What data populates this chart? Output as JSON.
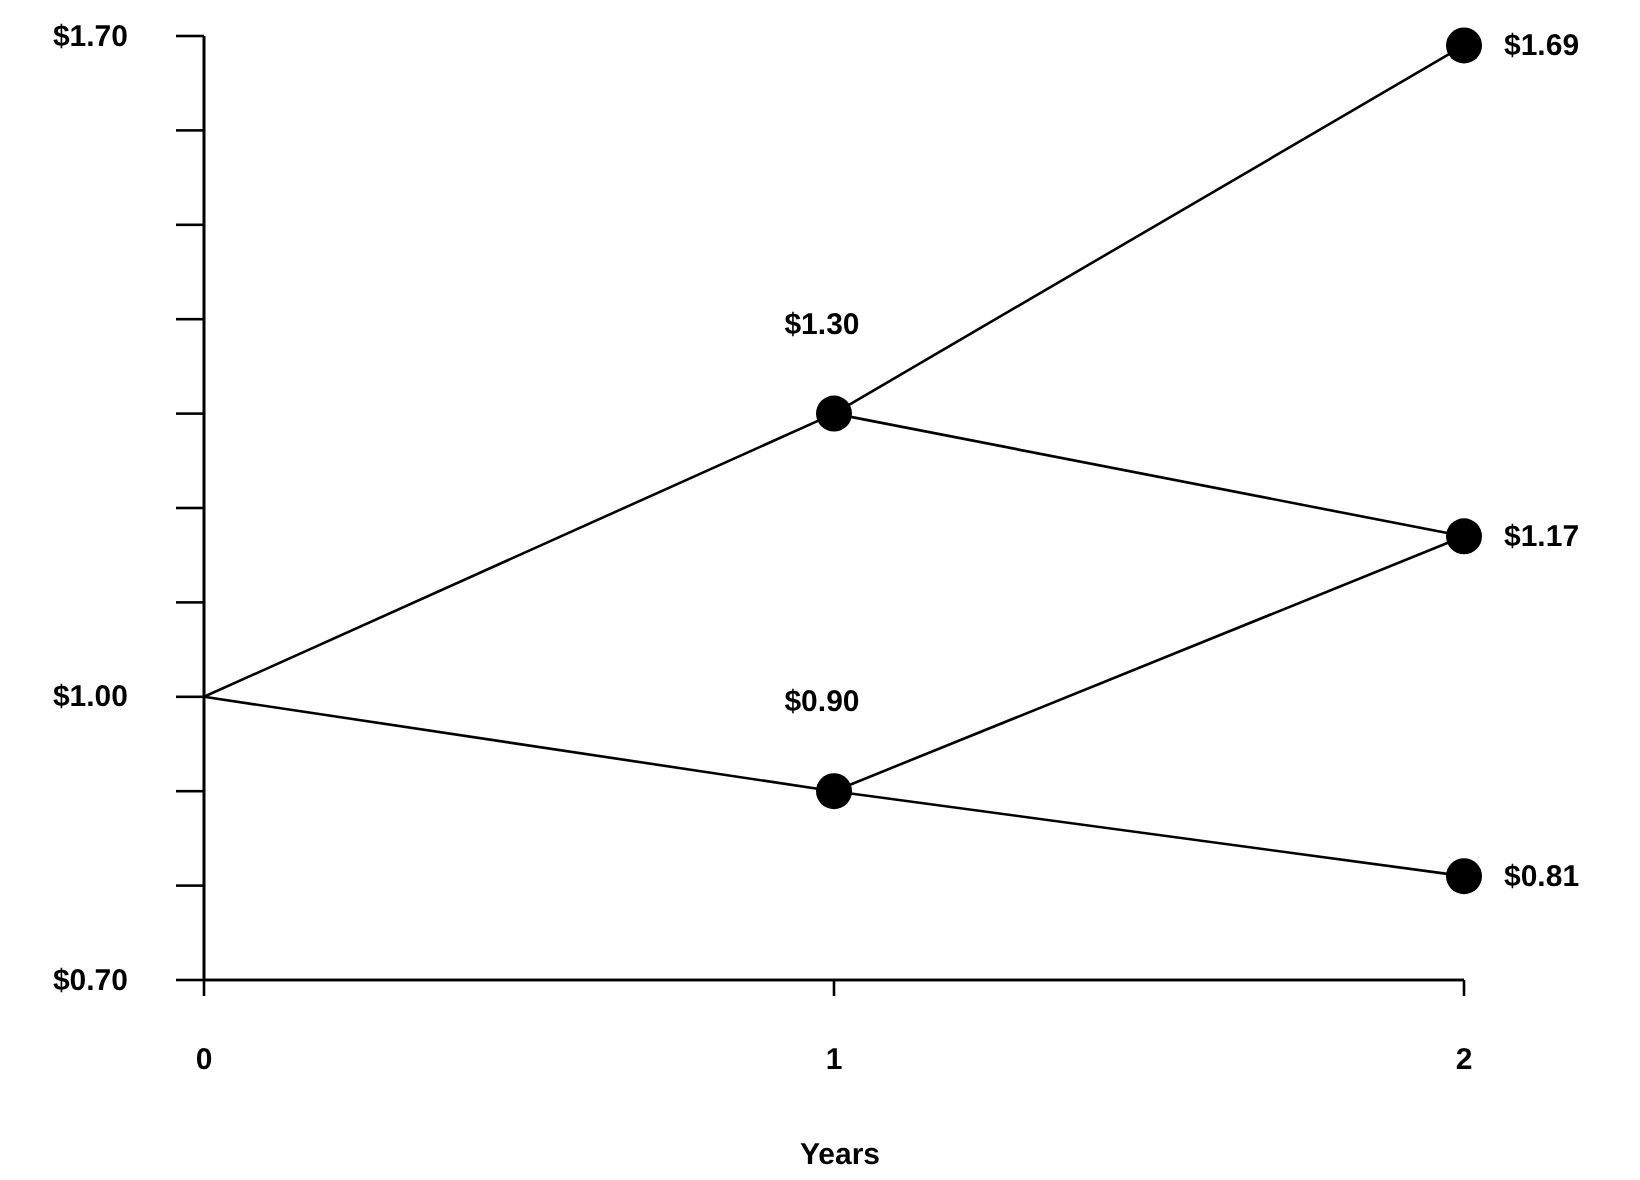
{
  "chart_data": {
    "type": "line",
    "xlabel": "Years",
    "xlim": [
      0,
      2
    ],
    "xticks": [
      0,
      1,
      2
    ],
    "ylim": [
      0.7,
      1.7
    ],
    "yticks": [
      {
        "value": 0.7,
        "label": "$0.70"
      },
      {
        "value": 0.8,
        "label": null
      },
      {
        "value": 0.9,
        "label": null
      },
      {
        "value": 1.0,
        "label": "$1.00"
      },
      {
        "value": 1.1,
        "label": null
      },
      {
        "value": 1.2,
        "label": null
      },
      {
        "value": 1.3,
        "label": null
      },
      {
        "value": 1.4,
        "label": null
      },
      {
        "value": 1.5,
        "label": null
      },
      {
        "value": 1.6,
        "label": null
      },
      {
        "value": 1.7,
        "label": "$1.70"
      }
    ],
    "grid": false,
    "marker": "none",
    "line_style": "solid",
    "series": [
      {
        "color": "#000000",
        "x": [
          0,
          1
        ],
        "values": [
          1.0,
          1.3
        ]
      },
      {
        "color": "#000000",
        "x": [
          0,
          1
        ],
        "values": [
          1.0,
          0.9
        ]
      },
      {
        "color": "#000000",
        "x": [
          1,
          2
        ],
        "values": [
          1.3,
          1.69
        ]
      },
      {
        "color": "#000000",
        "x": [
          1,
          2
        ],
        "values": [
          1.3,
          1.17
        ]
      },
      {
        "color": "#000000",
        "x": [
          1,
          2
        ],
        "values": [
          0.9,
          1.17
        ]
      },
      {
        "color": "#000000",
        "x": [
          1,
          2
        ],
        "values": [
          0.9,
          0.81
        ]
      },
      {
        "type": "scatter",
        "marker": "circle",
        "color": "#000000",
        "x": [
          1,
          1,
          2,
          2,
          2
        ],
        "values": [
          1.3,
          0.9,
          1.69,
          1.17,
          0.81
        ],
        "value_labels": [
          "$1.30",
          "$0.90",
          "$1.69",
          "$1.17",
          "$0.81"
        ]
      }
    ]
  }
}
